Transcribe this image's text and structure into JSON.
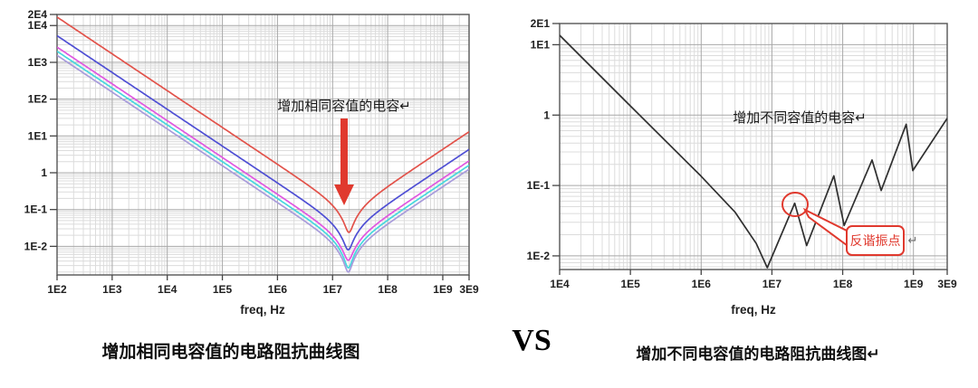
{
  "vs_label": "VS",
  "chart_data": [
    {
      "id": "same-capacitance-impedance",
      "type": "line",
      "x_scale": "log",
      "y_scale": "log",
      "caption": "增加相同电容值的电路阻抗曲线图",
      "annotation": "增加相同容值的电容↵",
      "xlabel": "freq, Hz",
      "x_ticks": [
        "1E2",
        "1E3",
        "1E4",
        "1E5",
        "1E6",
        "1E7",
        "1E8",
        "1E9",
        "3E9"
      ],
      "y_ticks": [
        "2E4",
        "1E4",
        "1E3",
        "1E2",
        "1E1",
        "1",
        "1E-1",
        "1E-2"
      ],
      "xlim": [
        100,
        3000000000
      ],
      "ylim": [
        0.00167,
        20000
      ],
      "grid": true,
      "resonance_hz": 20000000,
      "arrow_color": "#e0392e",
      "series": [
        {
          "name": "red-curve",
          "color": "#e2524a",
          "z_at_100hz": 17000,
          "z_min": 0.024,
          "z_at_3ghz": 13
        },
        {
          "name": "blue-curve",
          "color": "#4f4fd4",
          "z_at_100hz": 5300,
          "z_min": 0.008,
          "z_at_3ghz": 4.3
        },
        {
          "name": "magenta-curve",
          "color": "#e056e0",
          "z_at_100hz": 2600,
          "z_min": 0.0042,
          "z_at_3ghz": 2.1
        },
        {
          "name": "cyan-curve",
          "color": "#45d9dd",
          "z_at_100hz": 2000,
          "z_min": 0.0026,
          "z_at_3ghz": 1.6
        },
        {
          "name": "lavender-curve",
          "color": "#a89bdb",
          "z_at_100hz": 1550,
          "z_min": 0.002,
          "z_at_3ghz": 1.25
        }
      ]
    },
    {
      "id": "different-capacitance-impedance",
      "type": "line",
      "x_scale": "log",
      "y_scale": "log",
      "caption": "增加不同电容值的电路阻抗曲线图↵",
      "annotation": "增加不同容值的电容↵",
      "callout_label": "反谐振点",
      "callout_suffix": "↵",
      "callout_color": "#e0392e",
      "xlabel": "freq, Hz",
      "x_ticks": [
        "1E4",
        "1E5",
        "1E6",
        "1E7",
        "1E8",
        "1E9",
        "3E9"
      ],
      "y_ticks": [
        "2E1",
        "1E1",
        "1",
        "1E-1",
        "1E-2"
      ],
      "xlim": [
        10000,
        3000000000
      ],
      "ylim": [
        0.0064,
        20
      ],
      "grid": true,
      "anti_resonance_point": {
        "freq_hz": 21000000,
        "impedance": 0.056
      },
      "series": [
        {
          "name": "black-curve",
          "color": "#2f2f2f",
          "points": [
            [
              10000,
              13.6
            ],
            [
              100000,
              1.35
            ],
            [
              1000000,
              0.135
            ],
            [
              3000000,
              0.042
            ],
            [
              6000000,
              0.015
            ],
            [
              8600000,
              0.0068
            ],
            [
              13000000,
              0.018
            ],
            [
              21000000,
              0.056
            ],
            [
              31000000,
              0.014
            ],
            [
              75000000,
              0.137
            ],
            [
              105000000,
              0.027
            ],
            [
              260000000,
              0.23
            ],
            [
              350000000,
              0.085
            ],
            [
              790000000,
              0.74
            ],
            [
              980000000,
              0.163
            ],
            [
              3000000000,
              0.9
            ]
          ]
        }
      ]
    }
  ]
}
